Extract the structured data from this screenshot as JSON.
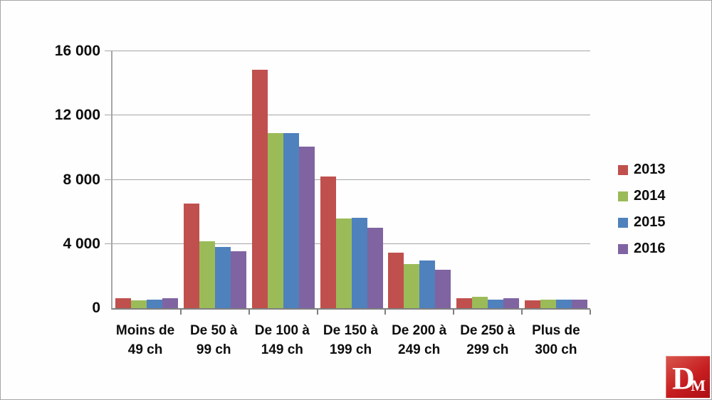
{
  "chart_data": {
    "type": "bar",
    "title": "",
    "xlabel": "",
    "ylabel": "",
    "ylim": [
      0,
      16000
    ],
    "ytick_step": 4000,
    "yticks": [
      "0",
      "4 000",
      "8 000",
      "12 000",
      "16 000"
    ],
    "grid": true,
    "legend_position": "right",
    "categories": [
      {
        "line1": "Moins de",
        "line2": "49 ch"
      },
      {
        "line1": "De 50 à",
        "line2": "99 ch"
      },
      {
        "line1": "De 100 à",
        "line2": "149 ch"
      },
      {
        "line1": "De 150 à",
        "line2": "199 ch"
      },
      {
        "line1": "De 200 à",
        "line2": "249 ch"
      },
      {
        "line1": "De 250 à",
        "line2": "299 ch"
      },
      {
        "line1": "Plus de",
        "line2": "300 ch"
      }
    ],
    "series": [
      {
        "name": "2013",
        "color": "#C0504D",
        "values": [
          600,
          6500,
          14850,
          8200,
          3450,
          600,
          500
        ]
      },
      {
        "name": "2014",
        "color": "#9BBB59",
        "values": [
          500,
          4150,
          10900,
          5600,
          2750,
          700,
          550
        ]
      },
      {
        "name": "2015",
        "color": "#4F81BD",
        "values": [
          550,
          3800,
          10900,
          5650,
          2950,
          550,
          550
        ]
      },
      {
        "name": "2016",
        "color": "#8064A2",
        "values": [
          630,
          3550,
          10050,
          5000,
          2400,
          600,
          550
        ]
      }
    ],
    "colors": {
      "gridline": "#a6a6a6",
      "axis": "#7f7f7f",
      "text": "#0d0d0d"
    }
  },
  "watermark": {
    "letter_large": "D",
    "letter_small": "M",
    "background": "#c71e20"
  }
}
